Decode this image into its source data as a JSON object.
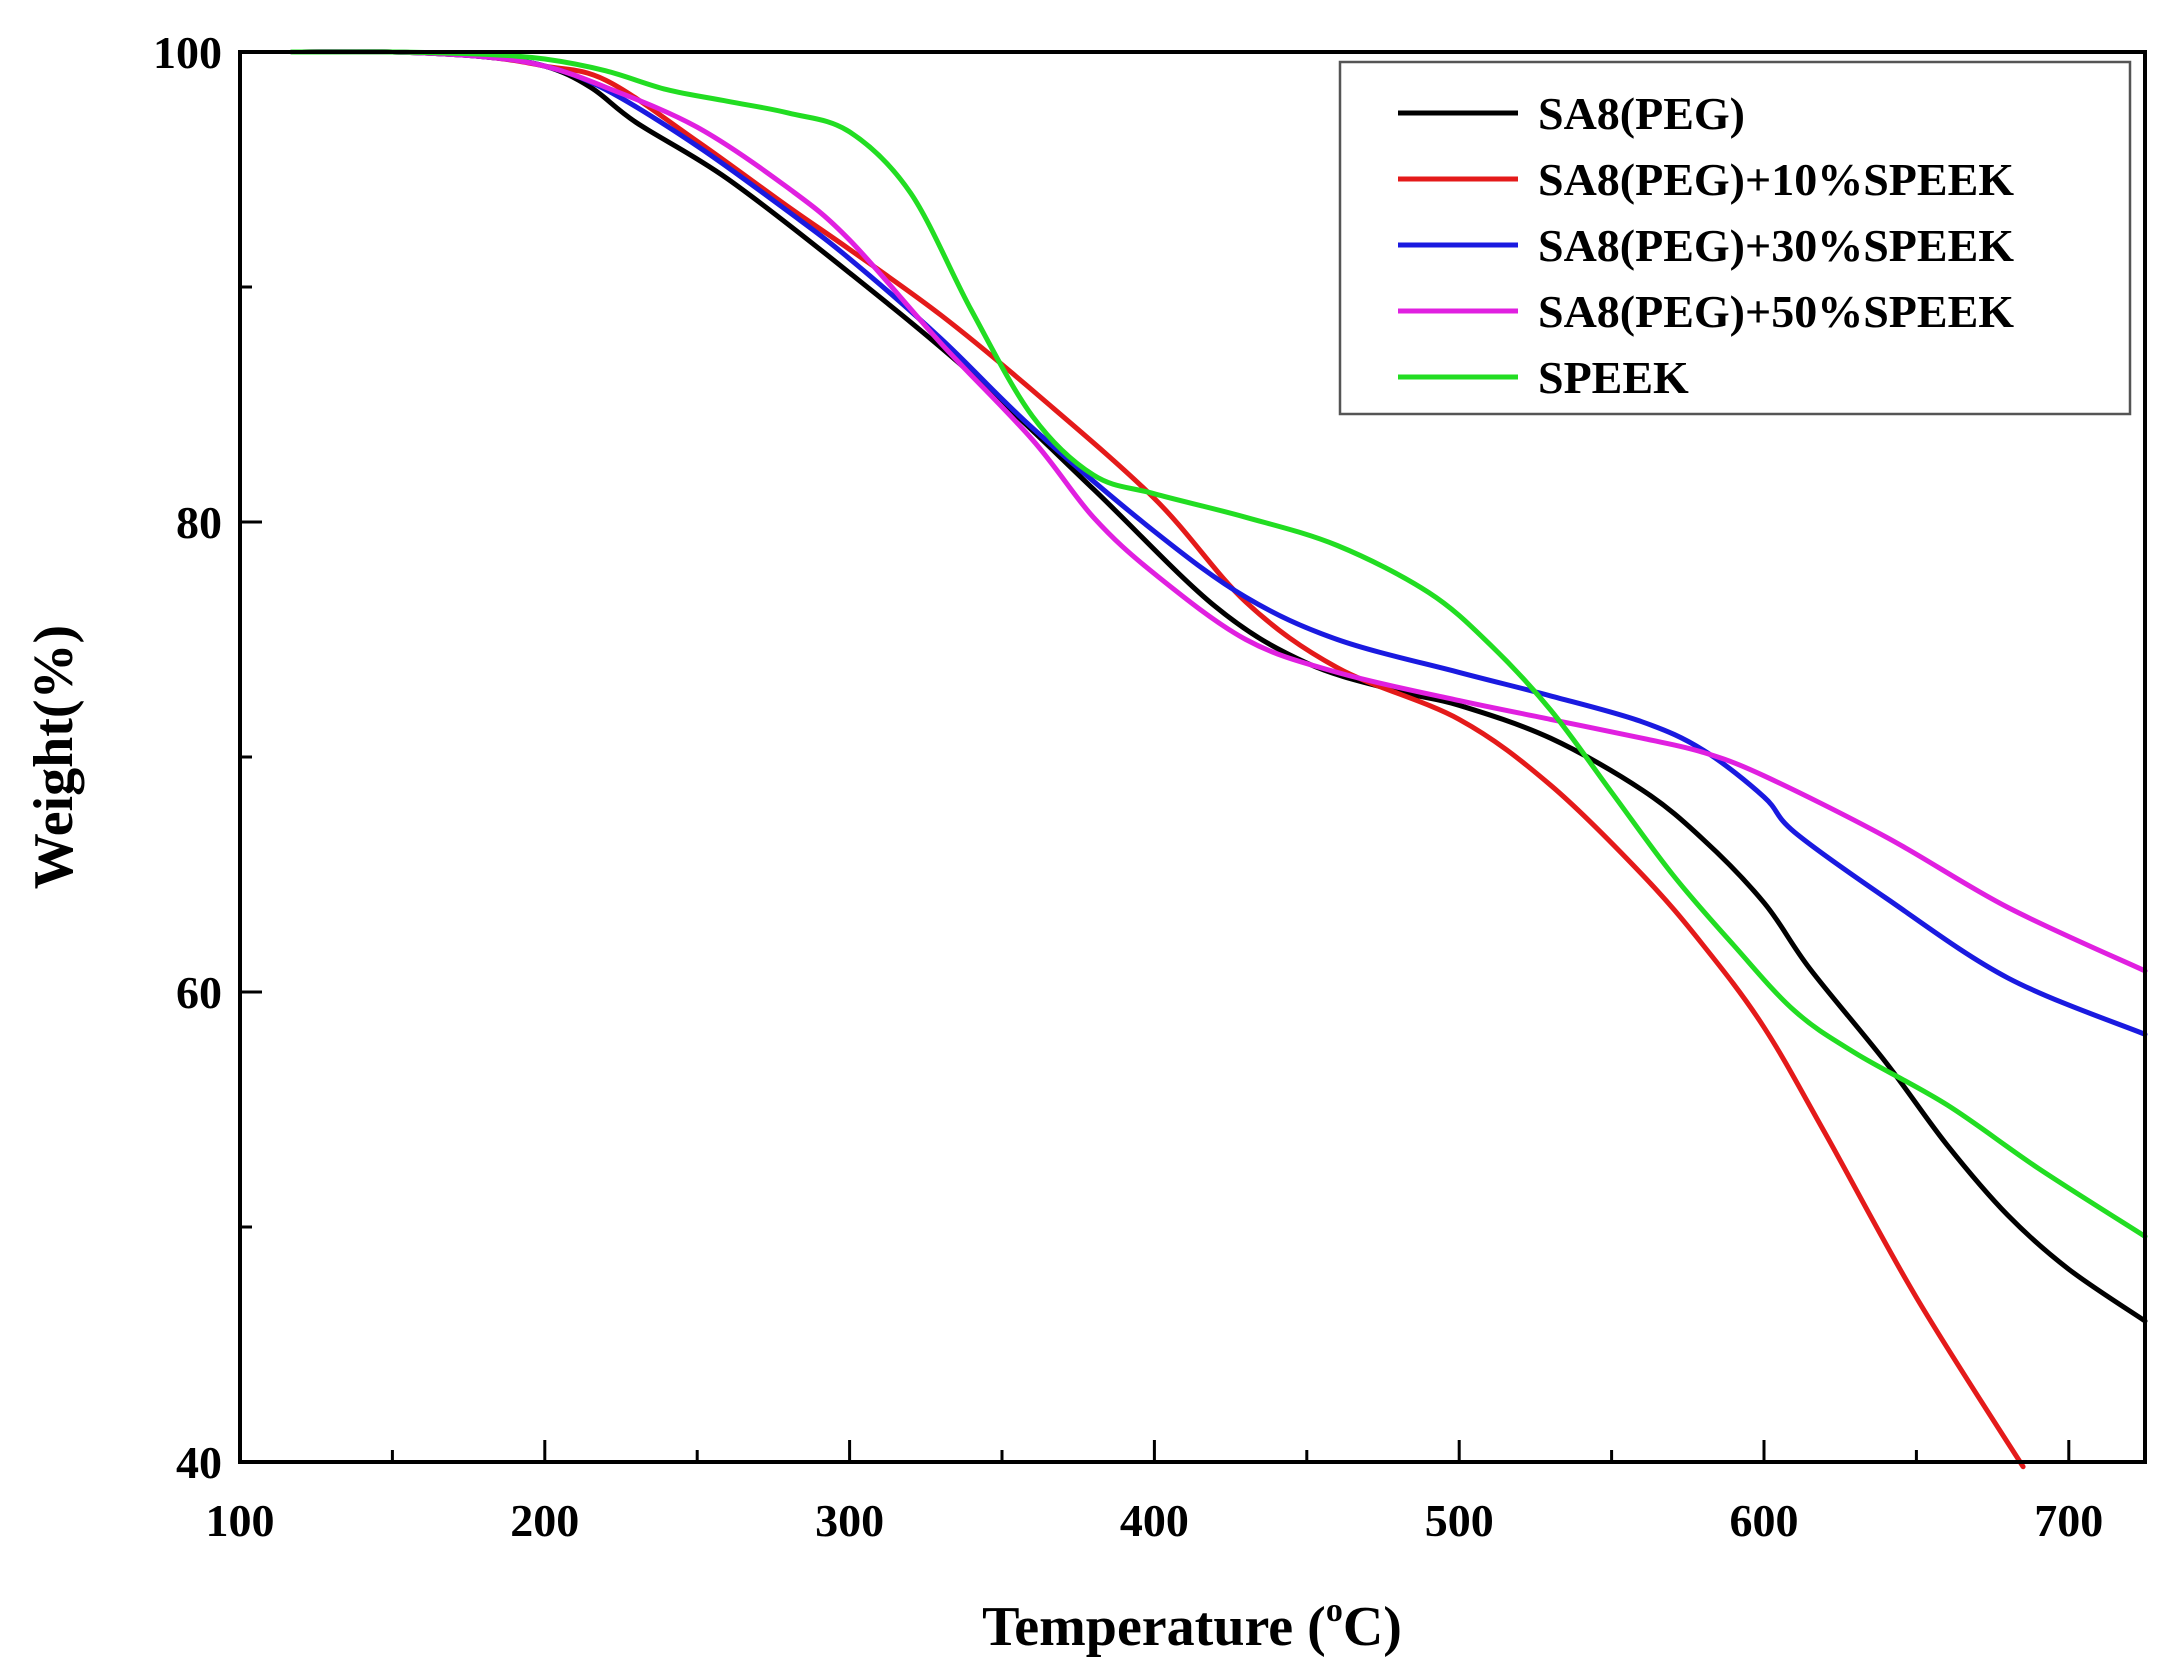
{
  "chart_data": {
    "type": "line",
    "title": "",
    "xlabel_main": "Temperature (",
    "xlabel_sup": "o",
    "xlabel_end": "C)",
    "ylabel": "Weight(%)",
    "xlim": [
      100,
      725
    ],
    "ylim": [
      40,
      100
    ],
    "x_ticks": [
      100,
      200,
      300,
      400,
      500,
      600,
      700
    ],
    "x_tick_labels": [
      "100",
      "200",
      "300",
      "400",
      "500",
      "600",
      "700"
    ],
    "y_ticks": [
      40,
      60,
      80,
      100
    ],
    "y_tick_labels": [
      "40",
      "60",
      "80",
      "100"
    ],
    "x_minor_ticks": [
      150,
      250,
      350,
      450,
      550,
      650
    ],
    "y_minor_ticks": [
      50,
      70,
      90
    ],
    "legend_position": "top-right",
    "series": [
      {
        "name": "SA8(PEG)",
        "color": "#000000",
        "x": [
          117,
          150,
          180,
          200,
          215,
          230,
          260,
          300,
          340,
          380,
          420,
          450,
          480,
          500,
          530,
          560,
          580,
          600,
          615,
          640,
          660,
          680,
          700,
          725
        ],
        "y": [
          100,
          100,
          99.8,
          99.4,
          98.5,
          97.0,
          94.6,
          90.6,
          86.3,
          81.4,
          76.4,
          74.0,
          72.8,
          72.2,
          70.8,
          68.6,
          66.5,
          63.8,
          61.0,
          57.0,
          53.5,
          50.5,
          48.2,
          46.0
        ]
      },
      {
        "name": "SA8(PEG)+10%SPEEK",
        "color": "#e41a1a",
        "x": [
          117,
          150,
          180,
          200,
          220,
          250,
          280,
          300,
          330,
          360,
          400,
          430,
          460,
          500,
          530,
          560,
          580,
          600,
          620,
          650,
          685
        ],
        "y": [
          100,
          100,
          99.8,
          99.4,
          98.8,
          96.2,
          93.4,
          91.6,
          88.8,
          85.6,
          81.0,
          76.6,
          73.8,
          71.6,
          68.8,
          65.0,
          62.0,
          58.5,
          54.0,
          47.0,
          39.8
        ]
      },
      {
        "name": "SA8(PEG)+30%SPEEK",
        "color": "#1a1ae0",
        "x": [
          117,
          150,
          180,
          200,
          220,
          250,
          280,
          300,
          330,
          360,
          400,
          430,
          460,
          500,
          530,
          560,
          580,
          600,
          610,
          640,
          680,
          725
        ],
        "y": [
          100,
          100,
          99.8,
          99.4,
          98.4,
          96.0,
          93.2,
          91.2,
          87.8,
          84.0,
          79.6,
          76.8,
          75.0,
          73.6,
          72.6,
          71.5,
          70.3,
          68.3,
          66.8,
          64.0,
          60.6,
          58.2
        ]
      },
      {
        "name": "SA8(PEG)+50%SPEEK",
        "color": "#e020e0",
        "x": [
          117,
          150,
          180,
          200,
          220,
          250,
          280,
          300,
          330,
          360,
          380,
          400,
          430,
          460,
          500,
          530,
          560,
          580,
          600,
          640,
          680,
          725
        ],
        "y": [
          100,
          100,
          99.8,
          99.4,
          98.5,
          96.8,
          94.2,
          92.0,
          87.6,
          83.5,
          80.2,
          77.8,
          75.0,
          73.6,
          72.4,
          71.6,
          70.8,
          70.2,
          69.2,
          66.6,
          63.6,
          60.9
        ]
      },
      {
        "name": "SPEEK",
        "color": "#22dd22",
        "x": [
          117,
          150,
          180,
          200,
          220,
          240,
          260,
          280,
          300,
          320,
          340,
          360,
          380,
          400,
          430,
          460,
          490,
          510,
          530,
          550,
          570,
          590,
          610,
          630,
          660,
          690,
          725
        ],
        "y": [
          100,
          100,
          99.9,
          99.7,
          99.2,
          98.4,
          97.9,
          97.4,
          96.6,
          94.0,
          89.0,
          84.5,
          82.0,
          81.2,
          80.2,
          79.0,
          77.0,
          74.8,
          72.0,
          68.5,
          65.0,
          62.0,
          59.2,
          57.4,
          55.2,
          52.5,
          49.6
        ]
      }
    ]
  }
}
